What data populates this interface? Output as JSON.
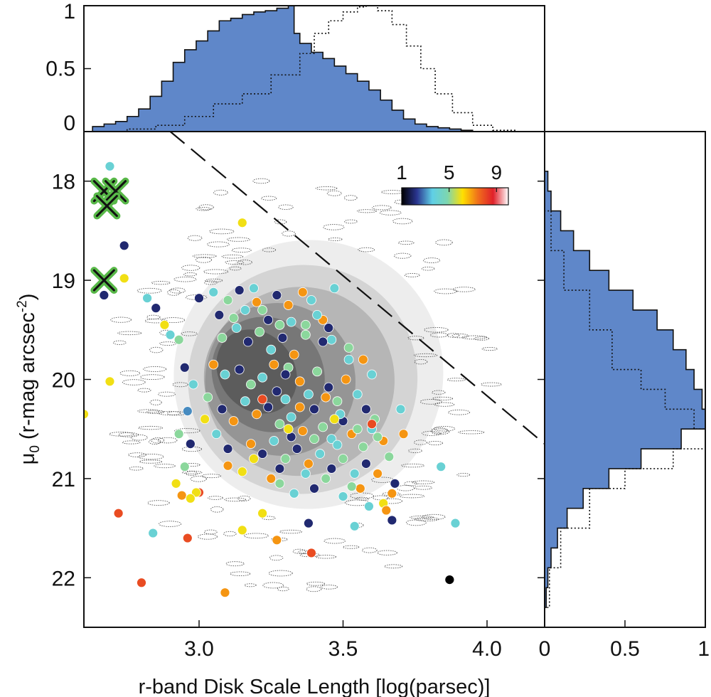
{
  "chart_data": [
    {
      "id": "main",
      "type": "scatter",
      "xlabel": "r-band Disk Scale Length [log(parsec)]",
      "ylabel": "μ",
      "ylabel_sub": "0",
      "ylabel_unit": " (r-mag arcsec",
      "ylabel_sup": "-2",
      "ylabel_close": ")",
      "xlim": [
        2.6,
        4.2
      ],
      "ylim": [
        22.5,
        17.5
      ],
      "y_inverted": true,
      "xticks": [
        3.0,
        3.5,
        4.0
      ],
      "xtick_labels": [
        "3.0",
        "3.5",
        "4.0"
      ],
      "yticks": [
        18,
        19,
        20,
        21,
        22
      ],
      "ytick_labels": [
        "18",
        "19",
        "20",
        "21",
        "22"
      ],
      "background": "grayscale density contours of the parent galaxy sample",
      "reference_line": {
        "style": "dashed",
        "x": [
          2.9,
          4.2
        ],
        "y": [
          17.5,
          20.65
        ]
      },
      "colorbar": {
        "ticks": [
          1,
          5,
          9
        ],
        "tick_labels": [
          "1",
          "5",
          "9"
        ],
        "colors": [
          "#000000",
          "#2a3590",
          "#5fcfe6",
          "#7dd6b0",
          "#ffe000",
          "#f0701b",
          "#e0202a",
          "#ffffff"
        ],
        "placement": "top-right"
      },
      "markers": [
        {
          "x": 2.67,
          "y": 18.1
        },
        {
          "x": 2.71,
          "y": 18.1
        },
        {
          "x": 2.68,
          "y": 18.25
        },
        {
          "x": 2.67,
          "y": 19.0
        }
      ],
      "points": [
        [
          2.69,
          17.85,
          4
        ],
        [
          2.74,
          18.65,
          2
        ],
        [
          2.74,
          18.98,
          6
        ],
        [
          2.67,
          19.15,
          2
        ],
        [
          2.6,
          20.35,
          6
        ],
        [
          2.69,
          20.02,
          6
        ],
        [
          3.15,
          18.42,
          6
        ],
        [
          2.82,
          19.18,
          4
        ],
        [
          2.85,
          19.28,
          2
        ],
        [
          2.88,
          19.45,
          6
        ],
        [
          2.9,
          19.55,
          4
        ],
        [
          2.93,
          19.6,
          5
        ],
        [
          2.95,
          19.88,
          2
        ],
        [
          2.98,
          20.05,
          4
        ],
        [
          2.96,
          20.32,
          3
        ],
        [
          2.93,
          20.55,
          5
        ],
        [
          2.97,
          20.65,
          2
        ],
        [
          2.95,
          20.88,
          5
        ],
        [
          3.02,
          20.4,
          6
        ],
        [
          3.06,
          20.55,
          4
        ],
        [
          3.1,
          20.7,
          2
        ],
        [
          3.03,
          20.18,
          5
        ],
        [
          3.08,
          20.3,
          2
        ],
        [
          3.12,
          20.42,
          7
        ],
        [
          3.0,
          19.18,
          2
        ],
        [
          3.05,
          19.12,
          4
        ],
        [
          3.1,
          19.2,
          5
        ],
        [
          3.14,
          19.1,
          2
        ],
        [
          3.19,
          19.08,
          4
        ],
        [
          3.22,
          19.3,
          5
        ],
        [
          3.27,
          19.15,
          2
        ],
        [
          3.31,
          19.25,
          7
        ],
        [
          3.36,
          19.12,
          7
        ],
        [
          3.39,
          19.2,
          4
        ],
        [
          3.47,
          19.08,
          4
        ],
        [
          3.08,
          19.58,
          5
        ],
        [
          3.13,
          19.48,
          4
        ],
        [
          3.17,
          19.62,
          2
        ],
        [
          3.21,
          19.52,
          5
        ],
        [
          3.25,
          19.7,
          4
        ],
        [
          3.29,
          19.58,
          2
        ],
        [
          3.33,
          19.75,
          7
        ],
        [
          3.37,
          19.55,
          5
        ],
        [
          3.43,
          19.4,
          7
        ],
        [
          3.46,
          19.6,
          4
        ],
        [
          3.52,
          19.68,
          5
        ],
        [
          3.05,
          19.85,
          7
        ],
        [
          3.09,
          19.95,
          4
        ],
        [
          3.14,
          19.9,
          2
        ],
        [
          3.18,
          20.05,
          5
        ],
        [
          3.22,
          19.98,
          4
        ],
        [
          3.27,
          20.12,
          2
        ],
        [
          3.31,
          19.88,
          5
        ],
        [
          3.35,
          20.02,
          7
        ],
        [
          3.38,
          20.15,
          4
        ],
        [
          3.41,
          19.92,
          5
        ],
        [
          3.45,
          20.08,
          2
        ],
        [
          3.48,
          20.22,
          5
        ],
        [
          3.51,
          20.0,
          7
        ],
        [
          3.55,
          20.15,
          4
        ],
        [
          3.58,
          20.3,
          2
        ],
        [
          3.61,
          20.4,
          5
        ],
        [
          3.16,
          20.22,
          4
        ],
        [
          3.2,
          20.35,
          7
        ],
        [
          3.24,
          20.28,
          2
        ],
        [
          3.28,
          20.45,
          5
        ],
        [
          3.32,
          20.38,
          4
        ],
        [
          3.36,
          20.52,
          7
        ],
        [
          3.4,
          20.3,
          2
        ],
        [
          3.43,
          20.48,
          5
        ],
        [
          3.46,
          20.6,
          4
        ],
        [
          3.5,
          20.42,
          2
        ],
        [
          3.53,
          20.55,
          7
        ],
        [
          3.57,
          20.68,
          5
        ],
        [
          3.6,
          20.5,
          4
        ],
        [
          3.64,
          20.62,
          7
        ],
        [
          3.18,
          20.65,
          7
        ],
        [
          3.22,
          20.75,
          2
        ],
        [
          3.26,
          20.62,
          4
        ],
        [
          3.3,
          20.8,
          5
        ],
        [
          3.34,
          20.7,
          2
        ],
        [
          3.38,
          20.85,
          7
        ],
        [
          3.42,
          20.75,
          4
        ],
        [
          3.46,
          20.9,
          2
        ],
        [
          3.5,
          20.8,
          5
        ],
        [
          3.54,
          20.95,
          4
        ],
        [
          3.58,
          20.85,
          2
        ],
        [
          3.62,
          20.95,
          7
        ],
        [
          3.66,
          20.78,
          5
        ],
        [
          3.71,
          20.55,
          7
        ],
        [
          3.7,
          20.3,
          4
        ],
        [
          3.68,
          21.05,
          2
        ],
        [
          3.67,
          21.15,
          7
        ],
        [
          3.1,
          20.87,
          7
        ],
        [
          3.15,
          20.93,
          6
        ],
        [
          3.25,
          21.0,
          7
        ],
        [
          3.28,
          21.05,
          5
        ],
        [
          3.33,
          21.15,
          4
        ],
        [
          3.4,
          21.1,
          2
        ],
        [
          3.44,
          21.0,
          5
        ],
        [
          3.5,
          21.18,
          4
        ],
        [
          3.56,
          21.1,
          7
        ],
        [
          3.59,
          21.28,
          4
        ],
        [
          3.64,
          21.25,
          6
        ],
        [
          3.65,
          21.32,
          7
        ],
        [
          3.67,
          21.42,
          2
        ],
        [
          3.84,
          20.88,
          4
        ],
        [
          3.89,
          21.45,
          4
        ],
        [
          3.87,
          22.02,
          1
        ],
        [
          3.54,
          21.48,
          4
        ],
        [
          3.6,
          20.45,
          8
        ],
        [
          3.62,
          20.58,
          5
        ],
        [
          3.57,
          19.8,
          7
        ],
        [
          3.6,
          19.95,
          4
        ],
        [
          3.52,
          19.8,
          4
        ],
        [
          3.43,
          19.62,
          2
        ],
        [
          3.37,
          19.45,
          5
        ],
        [
          3.41,
          19.35,
          4
        ],
        [
          3.45,
          19.48,
          2
        ],
        [
          3.32,
          19.42,
          4
        ],
        [
          3.28,
          19.45,
          5
        ],
        [
          3.24,
          19.4,
          2
        ],
        [
          3.16,
          19.3,
          4
        ],
        [
          3.2,
          19.22,
          7
        ],
        [
          3.12,
          19.38,
          5
        ],
        [
          3.07,
          19.35,
          2
        ],
        [
          3.26,
          19.85,
          7
        ],
        [
          3.3,
          20.2,
          4
        ],
        [
          3.35,
          20.28,
          7
        ],
        [
          3.4,
          20.6,
          5
        ],
        [
          3.44,
          20.18,
          7
        ],
        [
          3.49,
          20.35,
          4
        ],
        [
          3.55,
          20.5,
          5
        ],
        [
          3.3,
          19.95,
          2
        ],
        [
          3.22,
          20.2,
          8
        ],
        [
          3.32,
          20.58,
          2
        ],
        [
          3.28,
          20.9,
          2
        ],
        [
          3.0,
          21.14,
          8
        ],
        [
          2.94,
          21.17,
          7
        ],
        [
          2.97,
          21.2,
          7
        ],
        [
          2.99,
          21.14,
          6
        ],
        [
          2.97,
          21.2,
          6
        ],
        [
          2.96,
          21.6,
          8
        ],
        [
          2.92,
          21.05,
          6
        ],
        [
          2.84,
          21.55,
          4
        ],
        [
          2.72,
          21.35,
          8
        ],
        [
          2.8,
          22.05,
          8
        ],
        [
          3.09,
          22.15,
          7
        ],
        [
          3.15,
          21.52,
          6
        ],
        [
          3.22,
          21.35,
          6
        ],
        [
          3.27,
          21.62,
          7
        ],
        [
          3.38,
          21.45,
          2
        ],
        [
          3.39,
          21.75,
          8
        ],
        [
          3.31,
          20.5,
          6
        ],
        [
          3.19,
          20.8,
          6
        ],
        [
          3.47,
          20.4,
          6
        ],
        [
          3.37,
          20.95,
          4
        ],
        [
          3.48,
          20.66,
          4
        ],
        [
          3.53,
          21.08,
          5
        ]
      ]
    },
    {
      "id": "top_histogram",
      "type": "area",
      "xlim": [
        2.6,
        4.2
      ],
      "ylim": [
        0,
        1
      ],
      "yticks": [
        0,
        0.5,
        1
      ],
      "ytick_labels": [
        "0",
        "0.5",
        "1"
      ],
      "series": [
        {
          "style": "filled",
          "color": "#5f87c9",
          "x": [
            2.63,
            2.67,
            2.71,
            2.75,
            2.79,
            2.83,
            2.87,
            2.91,
            2.95,
            2.99,
            3.03,
            3.07,
            3.11,
            3.15,
            3.19,
            3.23,
            3.27,
            3.31,
            3.33,
            3.35,
            3.39,
            3.43,
            3.47,
            3.51,
            3.55,
            3.59,
            3.63,
            3.67,
            3.71,
            3.75,
            3.79,
            3.83,
            3.87,
            3.91,
            3.95
          ],
          "y": [
            0.04,
            0.06,
            0.08,
            0.12,
            0.18,
            0.28,
            0.4,
            0.55,
            0.65,
            0.72,
            0.8,
            0.88,
            0.9,
            0.93,
            0.95,
            0.96,
            0.98,
            1.0,
            0.78,
            0.7,
            0.63,
            0.58,
            0.52,
            0.46,
            0.4,
            0.33,
            0.25,
            0.17,
            0.1,
            0.06,
            0.04,
            0.03,
            0.02,
            0.01,
            0.0
          ]
        },
        {
          "style": "dotted",
          "x": [
            2.63,
            2.75,
            2.85,
            2.95,
            3.05,
            3.15,
            3.25,
            3.35,
            3.4,
            3.45,
            3.5,
            3.55,
            3.58,
            3.62,
            3.67,
            3.72,
            3.77,
            3.82,
            3.88,
            3.95,
            4.02,
            4.1
          ],
          "y": [
            0.0,
            0.02,
            0.05,
            0.12,
            0.22,
            0.3,
            0.45,
            0.62,
            0.78,
            0.88,
            0.95,
            0.99,
            1.0,
            0.96,
            0.85,
            0.68,
            0.5,
            0.3,
            0.15,
            0.05,
            0.01,
            0.0
          ]
        }
      ]
    },
    {
      "id": "right_histogram",
      "type": "area",
      "orientation": "horizontal",
      "xlim": [
        0,
        1
      ],
      "xticks": [
        0,
        0.5,
        1
      ],
      "xtick_labels": [
        "0",
        "0.5",
        "1"
      ],
      "series": [
        {
          "style": "filled",
          "color": "#5f87c9",
          "mu": [
            17.9,
            18.1,
            18.3,
            18.5,
            18.7,
            18.9,
            19.1,
            19.3,
            19.5,
            19.7,
            19.9,
            20.1,
            20.3,
            20.5,
            20.7,
            20.9,
            21.1,
            21.3,
            21.5,
            21.7,
            21.9,
            22.1,
            22.3
          ],
          "value": [
            0.02,
            0.04,
            0.1,
            0.18,
            0.28,
            0.4,
            0.55,
            0.7,
            0.8,
            0.88,
            0.93,
            0.98,
            1.0,
            0.85,
            0.6,
            0.4,
            0.24,
            0.14,
            0.08,
            0.04,
            0.02,
            0.01,
            0.0
          ]
        },
        {
          "style": "dotted",
          "mu": [
            17.9,
            18.3,
            18.7,
            19.1,
            19.5,
            19.9,
            20.1,
            20.3,
            20.5,
            20.7,
            20.9,
            21.1,
            21.5,
            21.9,
            22.3
          ],
          "value": [
            0.0,
            0.04,
            0.12,
            0.28,
            0.42,
            0.6,
            0.75,
            0.93,
            1.0,
            0.8,
            0.5,
            0.28,
            0.1,
            0.03,
            0.0
          ]
        }
      ]
    }
  ]
}
